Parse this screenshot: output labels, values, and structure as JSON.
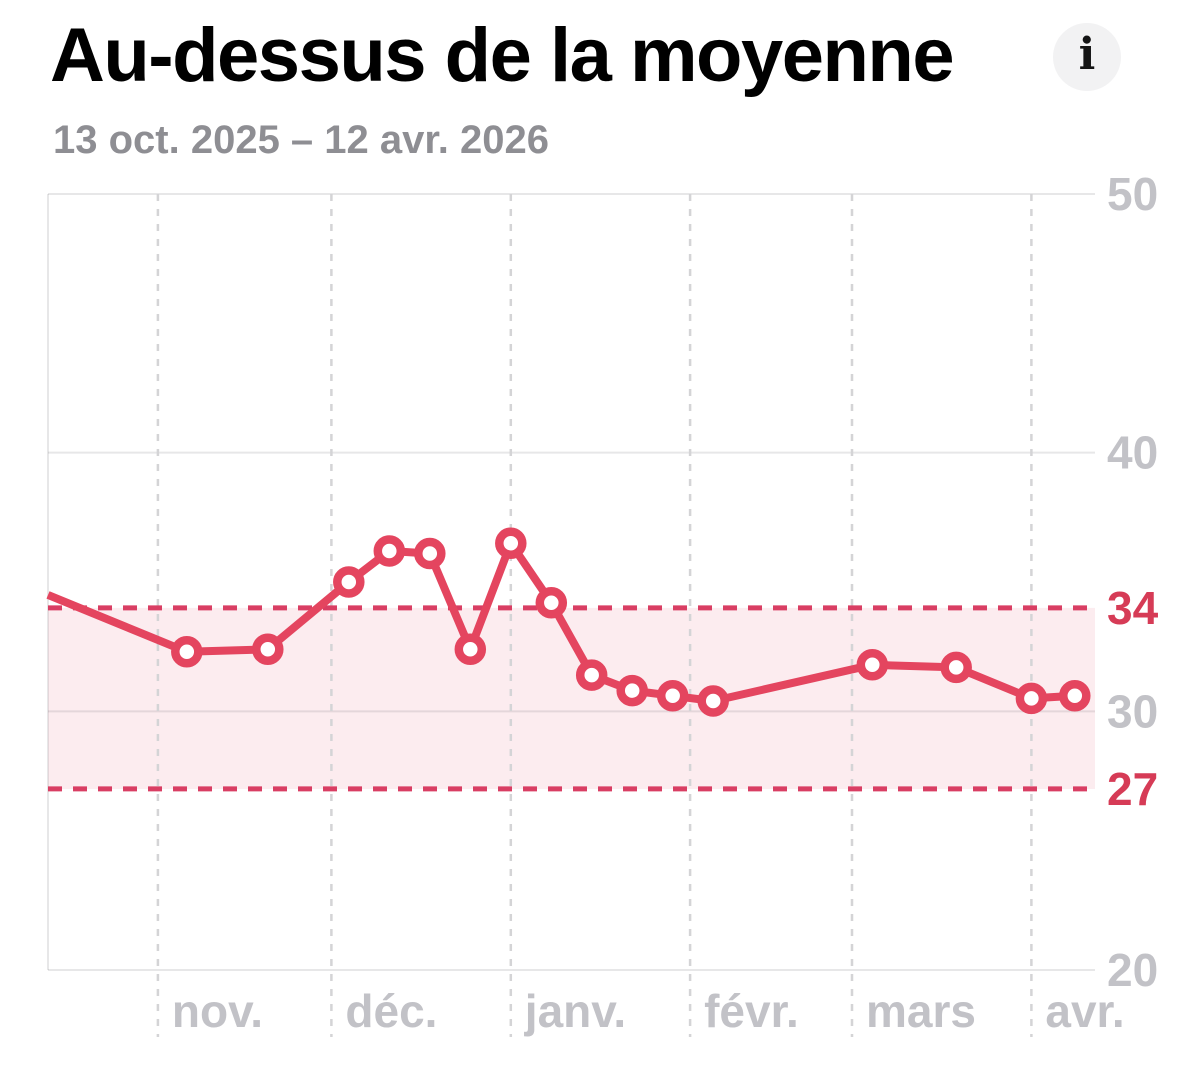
{
  "header": {
    "title": "Au-dessus de la moyenne",
    "info_label": "i",
    "date_range": "13 oct. 2025 – 12 avr. 2026"
  },
  "chart_data": {
    "type": "line",
    "title": "Au-dessus de la moyenne",
    "subtitle": "13 oct. 2025 – 12 avr. 2026",
    "xlabel": "",
    "ylabel": "",
    "ylim": [
      20,
      50
    ],
    "x_total_days": 181,
    "grid": true,
    "legend": false,
    "x_ticks": [
      {
        "label": "nov.",
        "day": 19
      },
      {
        "label": "déc.",
        "day": 49
      },
      {
        "label": "janv.",
        "day": 80
      },
      {
        "label": "févr.",
        "day": 111
      },
      {
        "label": "mars",
        "day": 139
      },
      {
        "label": "avr.",
        "day": 170
      }
    ],
    "y_gridline_values": [
      50,
      40,
      30,
      20
    ],
    "y_tick_labels": [
      {
        "text": "50",
        "value": 50,
        "emphasized": false
      },
      {
        "text": "40",
        "value": 40,
        "emphasized": false
      },
      {
        "text": "34",
        "value": 34,
        "emphasized": true
      },
      {
        "text": "30",
        "value": 30,
        "emphasized": false
      },
      {
        "text": "27",
        "value": 27,
        "emphasized": true
      },
      {
        "text": "20",
        "value": 20,
        "emphasized": false
      }
    ],
    "average_band": {
      "lower": 27,
      "upper": 34,
      "border_style": "dashed"
    },
    "series": [
      {
        "points": [
          {
            "day": 0,
            "value": 34.5,
            "marker": false
          },
          {
            "day": 24,
            "value": 32.3,
            "marker": true
          },
          {
            "day": 38,
            "value": 32.4,
            "marker": true
          },
          {
            "day": 52,
            "value": 35.0,
            "marker": true
          },
          {
            "day": 59,
            "value": 36.2,
            "marker": true
          },
          {
            "day": 66,
            "value": 36.1,
            "marker": true
          },
          {
            "day": 73,
            "value": 32.4,
            "marker": true
          },
          {
            "day": 80,
            "value": 36.5,
            "marker": true
          },
          {
            "day": 87,
            "value": 34.2,
            "marker": true
          },
          {
            "day": 94,
            "value": 31.4,
            "marker": true
          },
          {
            "day": 101,
            "value": 30.8,
            "marker": true
          },
          {
            "day": 108,
            "value": 30.6,
            "marker": true
          },
          {
            "day": 115,
            "value": 30.4,
            "marker": true
          },
          {
            "day": 142.5,
            "value": 31.8,
            "marker": true
          },
          {
            "day": 157,
            "value": 31.7,
            "marker": true
          },
          {
            "day": 170,
            "value": 30.5,
            "marker": true
          },
          {
            "day": 177.5,
            "value": 30.6,
            "marker": true
          }
        ]
      }
    ],
    "colors": {
      "line": "#e4455f",
      "marker_fill": "#ffffff",
      "band_border": "#d93e63",
      "band_fill": "rgba(228,69,95,0.10)",
      "tick_emphasis": "#d63b56",
      "tick_gray": "#c2c2c7",
      "hgrid": "rgba(60,60,67,0.12)",
      "vgrid": "#d4d4d6",
      "title": "#000000",
      "subtitle": "#8e8e93",
      "info_bg": "#f2f2f3"
    }
  }
}
